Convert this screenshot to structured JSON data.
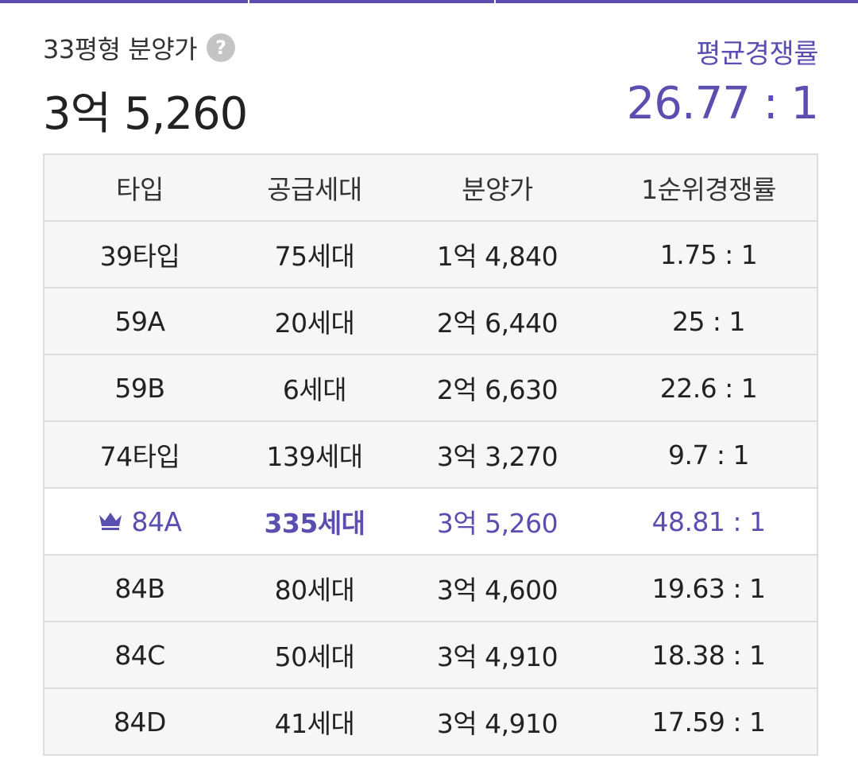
{
  "header": {
    "price_label": "33평형 분양가",
    "price_value": "3억 5,260",
    "compete_label": "평균경쟁률",
    "compete_value": "26.77 : 1",
    "help_icon": "question-icon"
  },
  "colors": {
    "accent": "#5a4fb0",
    "row_bg": "#f6f6f6",
    "highlight_bg": "#ffffff",
    "border": "#dddddd"
  },
  "table": {
    "columns": [
      "타입",
      "공급세대",
      "분양가",
      "1순위경쟁률"
    ],
    "rows": [
      {
        "type": "39타입",
        "units": "75세대",
        "price": "1억 4,840",
        "rate": "1.75 : 1"
      },
      {
        "type": "59A",
        "units": "20세대",
        "price": "2억 6,440",
        "rate": "25 : 1"
      },
      {
        "type": "59B",
        "units": "6세대",
        "price": "2억 6,630",
        "rate": "22.6 : 1"
      },
      {
        "type": "74타입",
        "units": "139세대",
        "price": "3억 3,270",
        "rate": "9.7 : 1"
      },
      {
        "type": "84A",
        "units": "335세대",
        "price": "3억 5,260",
        "rate": "48.81 : 1",
        "highlight": true,
        "icon": "crown-icon"
      },
      {
        "type": "84B",
        "units": "80세대",
        "price": "3억 4,600",
        "rate": "19.63 : 1"
      },
      {
        "type": "84C",
        "units": "50세대",
        "price": "3억 4,910",
        "rate": "18.38 : 1"
      },
      {
        "type": "84D",
        "units": "41세대",
        "price": "3억 4,910",
        "rate": "17.59 : 1"
      }
    ]
  }
}
